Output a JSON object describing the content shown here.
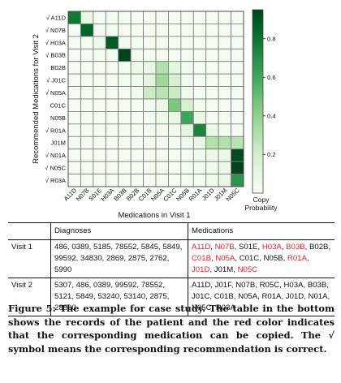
{
  "chart_data": {
    "type": "heatmap",
    "xlabel": "Medications in Visit 1",
    "ylabel": "Recommended Medications for Visit 2",
    "x_categories": [
      "A11D",
      "N07B",
      "S01E",
      "H03A",
      "B03B",
      "B02B",
      "C01B",
      "N05A",
      "C01C",
      "N05B",
      "R01A",
      "J01D",
      "J01M",
      "N05C"
    ],
    "y_categories": [
      "√ A11D",
      "√ N07B",
      "√ H03A",
      "√ B03B",
      "B02B",
      "√ J01C",
      "√ N05A",
      "C01C",
      "N05B",
      "√ R01A",
      "J01M",
      "√ N01A",
      "√ N05C",
      "√ R03A"
    ],
    "values": [
      [
        0.78,
        0.1,
        0.02,
        0.02,
        0.02,
        0.01,
        0.01,
        0.01,
        0.01,
        0.01,
        0.01,
        0.01,
        0.01,
        0.01
      ],
      [
        0.02,
        0.85,
        0.03,
        0.02,
        0.02,
        0.01,
        0.01,
        0.01,
        0.01,
        0.01,
        0.01,
        0.01,
        0.01,
        0.01
      ],
      [
        0.01,
        0.02,
        0.06,
        0.88,
        0.03,
        0.02,
        0.01,
        0.01,
        0.01,
        0.01,
        0.01,
        0.01,
        0.01,
        0.01
      ],
      [
        0.01,
        0.01,
        0.02,
        0.04,
        0.95,
        0.03,
        0.02,
        0.01,
        0.01,
        0.01,
        0.01,
        0.01,
        0.01,
        0.01
      ],
      [
        0.01,
        0.01,
        0.01,
        0.01,
        0.02,
        0.06,
        0.1,
        0.3,
        0.12,
        0.04,
        0.02,
        0.01,
        0.01,
        0.01
      ],
      [
        0.01,
        0.01,
        0.01,
        0.01,
        0.02,
        0.04,
        0.12,
        0.36,
        0.18,
        0.04,
        0.02,
        0.01,
        0.01,
        0.01
      ],
      [
        0.01,
        0.01,
        0.01,
        0.01,
        0.01,
        0.03,
        0.22,
        0.28,
        0.22,
        0.04,
        0.02,
        0.01,
        0.01,
        0.01
      ],
      [
        0.01,
        0.01,
        0.01,
        0.01,
        0.01,
        0.02,
        0.04,
        0.06,
        0.45,
        0.18,
        0.03,
        0.01,
        0.01,
        0.01
      ],
      [
        0.01,
        0.01,
        0.01,
        0.01,
        0.01,
        0.01,
        0.02,
        0.05,
        0.1,
        0.62,
        0.1,
        0.02,
        0.01,
        0.01
      ],
      [
        0.01,
        0.01,
        0.01,
        0.01,
        0.01,
        0.01,
        0.01,
        0.02,
        0.04,
        0.12,
        0.74,
        0.06,
        0.02,
        0.01
      ],
      [
        0.01,
        0.01,
        0.01,
        0.01,
        0.01,
        0.01,
        0.01,
        0.01,
        0.02,
        0.04,
        0.1,
        0.3,
        0.3,
        0.28
      ],
      [
        0.01,
        0.01,
        0.01,
        0.01,
        0.01,
        0.01,
        0.01,
        0.01,
        0.01,
        0.02,
        0.04,
        0.06,
        0.08,
        0.92
      ],
      [
        0.01,
        0.01,
        0.01,
        0.01,
        0.01,
        0.01,
        0.01,
        0.01,
        0.01,
        0.02,
        0.03,
        0.05,
        0.08,
        0.96
      ],
      [
        0.01,
        0.01,
        0.01,
        0.01,
        0.01,
        0.01,
        0.01,
        0.01,
        0.01,
        0.02,
        0.02,
        0.05,
        0.1,
        0.68
      ]
    ],
    "colorbar_ticks": [
      0.2,
      0.4,
      0.6,
      0.8
    ],
    "colorbar_tick_labels": [
      "0.2",
      "0.4",
      "0.6",
      "0.8"
    ],
    "colorbar_range": [
      0.0,
      0.95
    ],
    "colorbar_label_lines": [
      "Copy",
      "Probability"
    ],
    "colormap": [
      "#f7fcf5",
      "#e5f5e0",
      "#c7e9c0",
      "#a1d99b",
      "#74c476",
      "#41ab5d",
      "#238b45",
      "#006d2c",
      "#00441b"
    ],
    "grid": true
  },
  "table": {
    "header": {
      "col0": "",
      "col1": "Diagnoses",
      "col2": "Medications"
    },
    "rows": [
      {
        "label": "Visit 1",
        "diagnoses": "486, 0389, 5185, 78552, 5845, 5849, 99592, 34830, 2869, 2875, 2762, 5990",
        "medications": [
          {
            "code": "A11D",
            "red": true
          },
          {
            "code": "N07B",
            "red": true
          },
          {
            "code": "S01E",
            "red": false
          },
          {
            "code": "H03A",
            "red": true
          },
          {
            "code": "B03B",
            "red": true
          },
          {
            "code": "B02B",
            "red": false
          },
          {
            "code": "C01B",
            "red": true
          },
          {
            "code": "N05A",
            "red": true
          },
          {
            "code": "C01C",
            "red": false
          },
          {
            "code": "N05B",
            "red": false
          },
          {
            "code": "R01A",
            "red": true
          },
          {
            "code": "J01D",
            "red": true
          },
          {
            "code": "J01M",
            "red": false
          },
          {
            "code": "N05C",
            "red": true
          }
        ]
      },
      {
        "label": "Visit 2",
        "diagnoses": "5307, 486, 0389, 99592, 78552, 5121, 5849, 53240, 53140, 2875, 28800",
        "medications": [
          {
            "code": "A11D",
            "red": false
          },
          {
            "code": "J01F",
            "red": false
          },
          {
            "code": "N07B",
            "red": false
          },
          {
            "code": "R05C",
            "red": false
          },
          {
            "code": "H03A",
            "red": false
          },
          {
            "code": "B03B",
            "red": false
          },
          {
            "code": "J01C",
            "red": false
          },
          {
            "code": "C01B",
            "red": false
          },
          {
            "code": "N05A",
            "red": false
          },
          {
            "code": "R01A",
            "red": false
          },
          {
            "code": "J01D",
            "red": false
          },
          {
            "code": "N01A",
            "red": false
          },
          {
            "code": "N05C",
            "red": false
          },
          {
            "code": "R03A",
            "red": false
          }
        ]
      }
    ],
    "red_color": "#e8202a"
  },
  "caption": {
    "label": "Figure 5:",
    "text": "The example for case study. The table in the bottom shows the records of the patient and the red color indicates that the corresponding medication can be copied. The √ symbol means the corresponding recommendation is correct."
  }
}
